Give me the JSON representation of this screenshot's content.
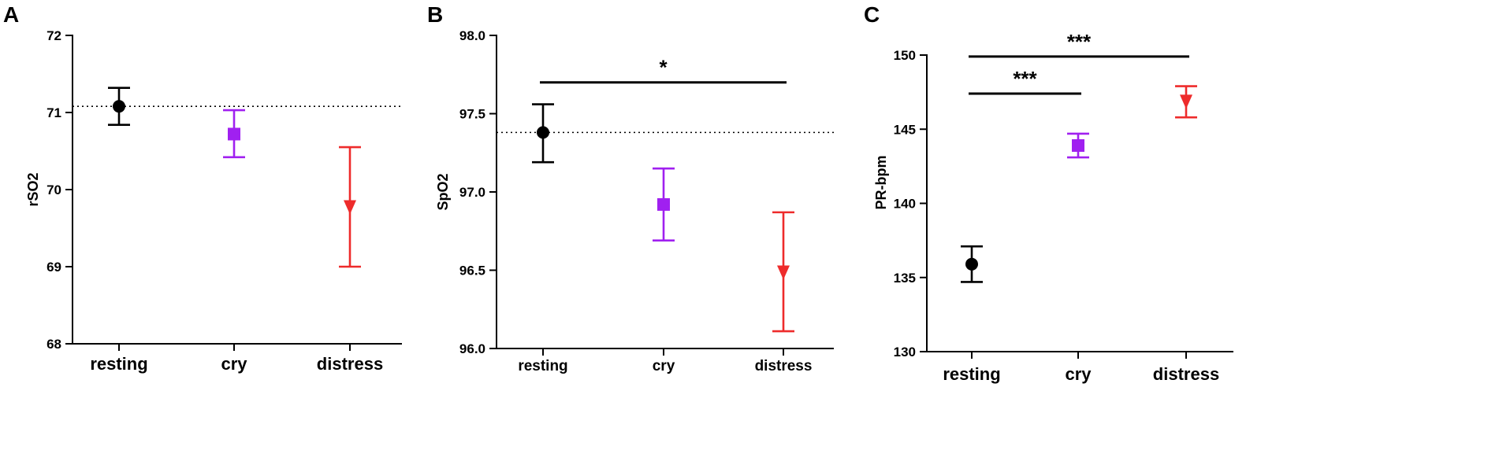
{
  "chart_data": [
    {
      "type": "scatter",
      "panel_label": "A",
      "title": "",
      "xlabel": "",
      "ylabel": "rSO2",
      "ylim": [
        68,
        72
      ],
      "yticks": [
        68,
        69,
        70,
        71,
        72
      ],
      "ytick_labels": [
        "68",
        "69",
        "70",
        "71",
        "72"
      ],
      "categories": [
        "resting",
        "cry",
        "distress"
      ],
      "series": [
        {
          "name": "resting",
          "value": 71.08,
          "error_low": 70.84,
          "error_high": 71.32,
          "color": "#000000",
          "marker": "circle"
        },
        {
          "name": "cry",
          "value": 70.72,
          "error_low": 70.42,
          "error_high": 71.03,
          "color": "#a020f0",
          "marker": "square"
        },
        {
          "name": "distress",
          "value": 69.78,
          "error_low": 69.0,
          "error_high": 70.55,
          "color": "#ee2b2b",
          "marker": "triangle-down"
        }
      ],
      "reference_line": 71.08,
      "significance": []
    },
    {
      "type": "scatter",
      "panel_label": "B",
      "title": "",
      "xlabel": "",
      "ylabel": "SpO2",
      "ylim": [
        96.0,
        98.0
      ],
      "yticks": [
        96.0,
        96.5,
        97.0,
        97.5,
        98.0
      ],
      "ytick_labels": [
        "96.0",
        "96.5",
        "97.0",
        "97.5",
        "98.0"
      ],
      "categories": [
        "resting",
        "cry",
        "distress"
      ],
      "series": [
        {
          "name": "resting",
          "value": 97.38,
          "error_low": 97.19,
          "error_high": 97.56,
          "color": "#000000",
          "marker": "circle"
        },
        {
          "name": "cry",
          "value": 96.92,
          "error_low": 96.69,
          "error_high": 97.15,
          "color": "#a020f0",
          "marker": "square"
        },
        {
          "name": "distress",
          "value": 96.49,
          "error_low": 96.11,
          "error_high": 96.87,
          "color": "#ee2b2b",
          "marker": "triangle-down"
        }
      ],
      "reference_line": 97.38,
      "significance": [
        {
          "from": "resting",
          "to": "distress",
          "y": 97.7,
          "label": "*"
        }
      ]
    },
    {
      "type": "scatter",
      "panel_label": "C",
      "title": "",
      "xlabel": "",
      "ylabel": "PR-bpm",
      "ylim": [
        130,
        150
      ],
      "yticks": [
        130,
        135,
        140,
        145,
        150
      ],
      "ytick_labels": [
        "130",
        "135",
        "140",
        "145",
        "150"
      ],
      "categories": [
        "resting",
        "cry",
        "distress"
      ],
      "series": [
        {
          "name": "resting",
          "value": 135.9,
          "error_low": 134.7,
          "error_high": 137.1,
          "color": "#000000",
          "marker": "circle"
        },
        {
          "name": "cry",
          "value": 143.9,
          "error_low": 143.1,
          "error_high": 144.7,
          "color": "#a020f0",
          "marker": "square"
        },
        {
          "name": "distress",
          "value": 146.9,
          "error_low": 145.8,
          "error_high": 147.9,
          "color": "#ee2b2b",
          "marker": "triangle-down"
        }
      ],
      "reference_line": null,
      "significance": [
        {
          "from": "resting",
          "to": "distress",
          "y": 149.9,
          "label": "***"
        },
        {
          "from": "resting",
          "to": "cry",
          "y": 147.4,
          "label": "***"
        }
      ]
    }
  ]
}
